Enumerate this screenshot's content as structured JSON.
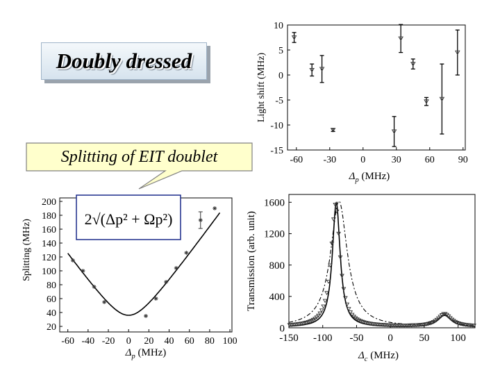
{
  "slide": {
    "title": "Doubly dressed",
    "callout": "Splitting of EIT doublet"
  },
  "colors": {
    "callout_fill": "#ffffcc",
    "callout_stroke": "#808080",
    "title_shadow": "#9aa3ad"
  },
  "chart_data": [
    {
      "id": "light-shift",
      "type": "scatter",
      "xlabel_symbol": "Δ",
      "xlabel_sub": "p",
      "xlabel_unit": " (MHz)",
      "ylabel": "Light shift (MHz)",
      "xlim": [
        -68,
        92
      ],
      "ylim": [
        -15,
        10
      ],
      "xticks": [
        -60,
        -30,
        0,
        30,
        60,
        90
      ],
      "yticks": [
        10,
        5,
        0,
        -5,
        -10,
        -15
      ],
      "points": [
        {
          "x": -62,
          "y": 7.5,
          "err": 1.0
        },
        {
          "x": -46,
          "y": 1.0,
          "err": 1.2
        },
        {
          "x": -37,
          "y": 1.2,
          "err": 2.7
        },
        {
          "x": -27,
          "y": -11.0,
          "err": 0.3
        },
        {
          "x": 28,
          "y": -11.3,
          "err": 3.0
        },
        {
          "x": 34,
          "y": 7.3,
          "err": 2.8
        },
        {
          "x": 45,
          "y": 2.2,
          "err": 1.0
        },
        {
          "x": 57,
          "y": -5.3,
          "err": 0.8
        },
        {
          "x": 71,
          "y": -4.8,
          "err": 7.0
        },
        {
          "x": 85,
          "y": 4.5,
          "err": 4.5
        }
      ]
    },
    {
      "id": "splitting",
      "type": "scatter",
      "xlabel_symbol": "Δ",
      "xlabel_sub": "p",
      "xlabel_unit": " (MHz)",
      "ylabel": "Splitting (MHz)",
      "xlim": [
        -68,
        102
      ],
      "ylim": [
        12,
        205
      ],
      "xticks": [
        -60,
        -40,
        -20,
        0,
        20,
        40,
        60,
        80,
        100
      ],
      "yticks": [
        200,
        180,
        160,
        140,
        120,
        100,
        80,
        60,
        40,
        20
      ],
      "legend_formula": "2√(Δp² + Ωp²)",
      "omega_p": 18,
      "fit_xrange": [
        -60,
        90
      ],
      "points": [
        {
          "x": -55,
          "y": 115
        },
        {
          "x": -45,
          "y": 100
        },
        {
          "x": -34,
          "y": 77
        },
        {
          "x": -24,
          "y": 55
        },
        {
          "x": 17,
          "y": 35
        },
        {
          "x": 27,
          "y": 60
        },
        {
          "x": 37,
          "y": 84
        },
        {
          "x": 47,
          "y": 104
        },
        {
          "x": 57,
          "y": 126
        },
        {
          "x": 71,
          "y": 173,
          "err": 12
        },
        {
          "x": 85,
          "y": 190
        }
      ]
    },
    {
      "id": "transmission",
      "type": "line",
      "xlabel_symbol": "Δ",
      "xlabel_sub": "c",
      "xlabel_unit": " (MHz)",
      "ylabel": "Transmission (arb. unit)",
      "xlim": [
        -150,
        125
      ],
      "ylim": [
        0,
        1700
      ],
      "xticks": [
        -150,
        -100,
        -50,
        0,
        50,
        100
      ],
      "yticks": [
        1600,
        1200,
        800,
        400,
        0
      ],
      "series": [
        {
          "peaks": [
            {
              "x0": -80,
              "a": 1590,
              "w": 7
            },
            {
              "x0": 80,
              "a": 150,
              "w": 12
            }
          ],
          "style": "solid"
        },
        {
          "peaks": [
            {
              "x0": -76,
              "a": 1610,
              "w": 15
            },
            {
              "x0": 80,
              "a": 150,
              "w": 12
            }
          ],
          "style": "dashdot"
        }
      ],
      "markers": {
        "peaks": [
          {
            "x0": -81,
            "a": 1560,
            "w": 8
          },
          {
            "x0": 80,
            "a": 160,
            "w": 12
          }
        ],
        "step": 2.5
      }
    }
  ]
}
